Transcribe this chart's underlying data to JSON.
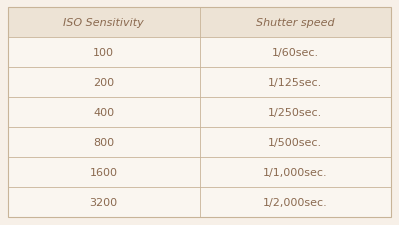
{
  "header": [
    "ISO Sensitivity",
    "Shutter speed"
  ],
  "rows": [
    [
      "100",
      "1/60sec."
    ],
    [
      "200",
      "1/125sec."
    ],
    [
      "400",
      "1/250sec."
    ],
    [
      "800",
      "1/500sec."
    ],
    [
      "1600",
      "1/1,000sec."
    ],
    [
      "3200",
      "1/2,000sec."
    ]
  ],
  "bg_color": "#f7f0e8",
  "header_bg_color": "#ede3d5",
  "row_bg_color": "#faf6f0",
  "border_color": "#c8b498",
  "text_color": "#8b6a50",
  "header_fontsize": 8.0,
  "row_fontsize": 8.0,
  "fig_width": 3.99,
  "fig_height": 2.26,
  "dpi": 100
}
